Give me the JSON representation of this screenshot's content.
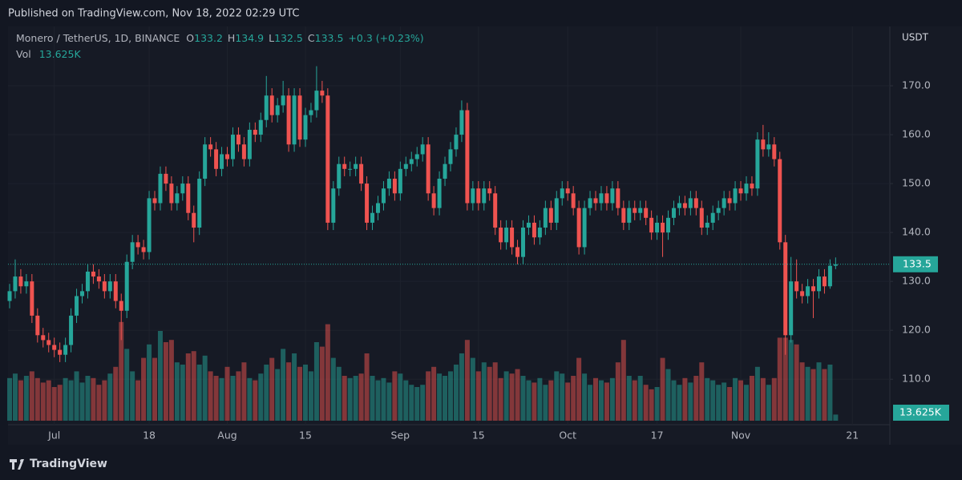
{
  "chart_data": {
    "type": "candlestick",
    "published": "Published on TradingView.com, Nov 18, 2022 02:29 UTC",
    "symbol": "Monero / TetherUS, 1D, BINANCE",
    "legend_keys": [
      "O",
      "H",
      "L",
      "C"
    ],
    "change_label": "+0.3 (+0.23%)",
    "y_axis_label": "USDT",
    "footer": "TradingView",
    "up_color": "#26a69a",
    "down_color": "#ef5350",
    "grid": true,
    "last_price_line": true,
    "x": [
      "2022-06-23",
      "2022-06-24",
      "2022-06-25",
      "2022-06-26",
      "2022-06-27",
      "2022-06-28",
      "2022-06-29",
      "2022-06-30",
      "2022-07-01",
      "2022-07-02",
      "2022-07-03",
      "2022-07-04",
      "2022-07-05",
      "2022-07-06",
      "2022-07-07",
      "2022-07-08",
      "2022-07-09",
      "2022-07-10",
      "2022-07-11",
      "2022-07-12",
      "2022-07-13",
      "2022-07-14",
      "2022-07-15",
      "2022-07-16",
      "2022-07-17",
      "2022-07-18",
      "2022-07-19",
      "2022-07-20",
      "2022-07-21",
      "2022-07-22",
      "2022-07-23",
      "2022-07-24",
      "2022-07-25",
      "2022-07-26",
      "2022-07-27",
      "2022-07-28",
      "2022-07-29",
      "2022-07-30",
      "2022-07-31",
      "2022-08-01",
      "2022-08-02",
      "2022-08-03",
      "2022-08-04",
      "2022-08-05",
      "2022-08-06",
      "2022-08-07",
      "2022-08-08",
      "2022-08-09",
      "2022-08-10",
      "2022-08-11",
      "2022-08-12",
      "2022-08-13",
      "2022-08-14",
      "2022-08-15",
      "2022-08-16",
      "2022-08-17",
      "2022-08-18",
      "2022-08-19",
      "2022-08-20",
      "2022-08-21",
      "2022-08-22",
      "2022-08-23",
      "2022-08-24",
      "2022-08-25",
      "2022-08-26",
      "2022-08-27",
      "2022-08-28",
      "2022-08-29",
      "2022-08-30",
      "2022-08-31",
      "2022-09-01",
      "2022-09-02",
      "2022-09-03",
      "2022-09-04",
      "2022-09-05",
      "2022-09-06",
      "2022-09-07",
      "2022-09-08",
      "2022-09-09",
      "2022-09-10",
      "2022-09-11",
      "2022-09-12",
      "2022-09-13",
      "2022-09-14",
      "2022-09-15",
      "2022-09-16",
      "2022-09-17",
      "2022-09-18",
      "2022-09-19",
      "2022-09-20",
      "2022-09-21",
      "2022-09-22",
      "2022-09-23",
      "2022-09-24",
      "2022-09-25",
      "2022-09-26",
      "2022-09-27",
      "2022-09-28",
      "2022-09-29",
      "2022-09-30",
      "2022-10-01",
      "2022-10-02",
      "2022-10-03",
      "2022-10-04",
      "2022-10-05",
      "2022-10-06",
      "2022-10-07",
      "2022-10-08",
      "2022-10-09",
      "2022-10-10",
      "2022-10-11",
      "2022-10-12",
      "2022-10-13",
      "2022-10-14",
      "2022-10-15",
      "2022-10-16",
      "2022-10-17",
      "2022-10-18",
      "2022-10-19",
      "2022-10-20",
      "2022-10-21",
      "2022-10-22",
      "2022-10-23",
      "2022-10-24",
      "2022-10-25",
      "2022-10-26",
      "2022-10-27",
      "2022-10-28",
      "2022-10-29",
      "2022-10-30",
      "2022-10-31",
      "2022-11-01",
      "2022-11-02",
      "2022-11-03",
      "2022-11-04",
      "2022-11-05",
      "2022-11-06",
      "2022-11-07",
      "2022-11-08",
      "2022-11-09",
      "2022-11-10",
      "2022-11-11",
      "2022-11-12",
      "2022-11-13",
      "2022-11-14",
      "2022-11-15",
      "2022-11-16",
      "2022-11-17",
      "2022-11-18"
    ],
    "open": [
      126,
      128,
      131,
      129,
      130,
      123,
      119,
      118,
      117,
      116,
      115,
      117,
      123,
      127,
      128,
      132,
      131,
      130,
      128,
      130,
      126,
      124,
      134,
      138,
      137,
      136,
      147,
      146,
      152,
      150,
      146,
      148,
      150,
      144,
      141,
      151,
      158,
      157,
      153,
      156,
      155,
      160,
      158,
      155,
      161,
      160,
      163,
      168,
      164,
      166,
      168,
      158,
      168,
      159,
      164,
      165,
      169,
      168,
      142,
      149,
      154,
      153,
      153,
      154,
      150,
      142,
      144,
      146,
      149,
      151,
      148,
      153,
      154,
      155,
      156,
      158,
      148,
      145,
      151,
      154,
      157,
      160,
      165,
      146,
      149,
      146,
      149,
      148,
      141,
      138,
      141,
      137,
      135,
      141,
      142,
      139,
      141,
      145,
      142,
      147,
      149,
      148,
      145,
      137,
      145,
      147,
      146,
      148,
      146,
      149,
      145,
      142,
      145,
      144,
      145,
      143,
      140,
      142,
      140,
      143,
      145,
      146,
      145,
      147,
      145,
      141,
      142,
      144,
      145,
      147,
      146,
      149,
      148,
      150,
      149,
      159,
      157,
      158,
      155,
      138,
      119,
      130,
      128,
      127,
      129,
      128,
      131,
      129,
      133.2
    ],
    "high": [
      129.5,
      134.5,
      132.5,
      131.5,
      131.5,
      124.5,
      120.5,
      119.5,
      118.5,
      117.5,
      118.5,
      124.5,
      128.5,
      129.5,
      133.5,
      133.5,
      132.5,
      131.5,
      131.5,
      131.5,
      127.5,
      135.5,
      139.5,
      139.5,
      138.5,
      148.5,
      148.5,
      153.5,
      153.5,
      151.5,
      149.5,
      151.5,
      151.5,
      145.5,
      152.5,
      159.5,
      159.5,
      158.5,
      157.5,
      157.5,
      161.5,
      161.5,
      159.5,
      162.5,
      162.5,
      164.5,
      172,
      169.5,
      167.5,
      171,
      169.5,
      169.5,
      169.5,
      165.5,
      166.5,
      174,
      171,
      169.5,
      150.5,
      155.5,
      155.5,
      154.5,
      155.5,
      155.5,
      151.5,
      145.5,
      147.5,
      150.5,
      152.5,
      152.5,
      154.5,
      155.5,
      156.5,
      157.5,
      159.5,
      159.5,
      149.5,
      152.5,
      155.5,
      158.5,
      161.5,
      167,
      166.5,
      150.5,
      150.5,
      150.5,
      150.5,
      149.5,
      142.5,
      142.5,
      142.5,
      138.5,
      142.5,
      143.5,
      143.5,
      142.5,
      146.5,
      146.5,
      148.5,
      150.5,
      150.5,
      149.5,
      146.5,
      146.5,
      148.5,
      148.5,
      149.5,
      149.5,
      150.5,
      150.5,
      146.5,
      146.5,
      146.5,
      146.5,
      146.5,
      144.5,
      143.5,
      143.5,
      144.5,
      146.5,
      147.5,
      147.5,
      148.5,
      148.5,
      146.5,
      143.5,
      145.5,
      146.5,
      148.5,
      148.5,
      150.5,
      150.5,
      151.5,
      151.5,
      160.5,
      162,
      160.5,
      159.5,
      156.5,
      139.5,
      135,
      134.5,
      129.5,
      130.5,
      130.5,
      132.5,
      132.5,
      134.5,
      134.9
    ],
    "low": [
      124.5,
      126.5,
      127.5,
      127.5,
      121.5,
      117.5,
      116.5,
      115.5,
      114.5,
      113.5,
      113.5,
      115.5,
      121.5,
      125.5,
      126.5,
      129.5,
      128.5,
      126.5,
      126.5,
      124.5,
      118,
      122.5,
      132.5,
      135.5,
      134.5,
      134.5,
      144.5,
      144.5,
      148.5,
      144.5,
      144.5,
      146.5,
      142.5,
      138,
      139.5,
      149.5,
      155.5,
      151.5,
      151.5,
      153.5,
      153.5,
      156.5,
      153.5,
      153.5,
      158.5,
      158.5,
      161.5,
      162.5,
      162.5,
      164.5,
      156.5,
      156.5,
      157.5,
      157.5,
      162.5,
      163.5,
      166.5,
      140.5,
      140.5,
      147.5,
      151.5,
      151.5,
      151.5,
      148.5,
      140.5,
      140.5,
      142.5,
      144.5,
      147.5,
      146.5,
      146.5,
      151.5,
      152.5,
      153.5,
      154.5,
      146.5,
      143.5,
      143.5,
      149.5,
      152.5,
      155.5,
      158.5,
      144.5,
      144.5,
      144.5,
      144.5,
      146.5,
      139.5,
      136.5,
      136.5,
      135.5,
      133.5,
      133.5,
      139.5,
      137.5,
      137.5,
      139.5,
      140.5,
      140.5,
      145.5,
      146.5,
      143.5,
      135.5,
      135.5,
      143.5,
      144.5,
      144.5,
      144.5,
      144.5,
      143.5,
      140.5,
      140.5,
      142.5,
      142.5,
      141.5,
      138.5,
      138.5,
      135,
      138.5,
      141.5,
      143.5,
      143.5,
      143.5,
      143.5,
      139.5,
      139.5,
      140.5,
      142.5,
      143.5,
      144.5,
      144.5,
      146.5,
      146.5,
      147.5,
      147.5,
      155.5,
      155.5,
      153.5,
      136.5,
      115,
      117.5,
      126.5,
      125.5,
      125.5,
      122.5,
      126.5,
      127.5,
      128.5,
      132.5
    ],
    "close": [
      128,
      131,
      129,
      130,
      123,
      119,
      118,
      117,
      116,
      115,
      117,
      123,
      127,
      128,
      132,
      131,
      130,
      128,
      130,
      126,
      124,
      134,
      138,
      137,
      136,
      147,
      146,
      152,
      150,
      146,
      148,
      150,
      144,
      141,
      151,
      158,
      157,
      153,
      156,
      155,
      160,
      158,
      155,
      161,
      160,
      163,
      168,
      164,
      166,
      168,
      158,
      168,
      159,
      164,
      165,
      169,
      168,
      142,
      149,
      154,
      153,
      153,
      154,
      150,
      142,
      144,
      146,
      149,
      151,
      148,
      153,
      154,
      155,
      156,
      158,
      148,
      145,
      151,
      154,
      157,
      160,
      165,
      146,
      149,
      146,
      149,
      148,
      141,
      138,
      141,
      137,
      135,
      141,
      142,
      139,
      141,
      145,
      142,
      147,
      149,
      148,
      145,
      137,
      145,
      147,
      146,
      148,
      146,
      149,
      145,
      142,
      145,
      144,
      145,
      143,
      140,
      142,
      140,
      143,
      145,
      146,
      145,
      147,
      145,
      141,
      142,
      144,
      145,
      147,
      146,
      149,
      148,
      150,
      149,
      159,
      157,
      158,
      155,
      138,
      119,
      130,
      128,
      127,
      129,
      128,
      131,
      129,
      133.2,
      133.5
    ],
    "volume": {
      "name": "Vol",
      "last_label": "13.625K",
      "lim": [
        0,
        250000
      ],
      "values": [
        95000,
        105000,
        90000,
        100000,
        110000,
        95000,
        85000,
        90000,
        75000,
        80000,
        95000,
        90000,
        110000,
        85000,
        100000,
        95000,
        80000,
        90000,
        105000,
        120000,
        220000,
        160000,
        110000,
        90000,
        140000,
        170000,
        140000,
        200000,
        175000,
        180000,
        130000,
        125000,
        150000,
        155000,
        125000,
        145000,
        110000,
        100000,
        95000,
        120000,
        100000,
        110000,
        130000,
        95000,
        90000,
        105000,
        125000,
        140000,
        115000,
        160000,
        130000,
        150000,
        120000,
        125000,
        110000,
        175000,
        165000,
        215000,
        140000,
        120000,
        100000,
        95000,
        100000,
        105000,
        150000,
        100000,
        90000,
        95000,
        85000,
        110000,
        105000,
        90000,
        80000,
        75000,
        80000,
        110000,
        120000,
        105000,
        100000,
        110000,
        125000,
        150000,
        180000,
        140000,
        110000,
        130000,
        120000,
        130000,
        95000,
        110000,
        105000,
        115000,
        100000,
        90000,
        85000,
        95000,
        80000,
        90000,
        110000,
        105000,
        85000,
        100000,
        140000,
        105000,
        80000,
        95000,
        90000,
        85000,
        95000,
        130000,
        180000,
        100000,
        90000,
        100000,
        80000,
        70000,
        75000,
        140000,
        115000,
        90000,
        80000,
        95000,
        85000,
        100000,
        130000,
        95000,
        90000,
        80000,
        85000,
        75000,
        95000,
        90000,
        80000,
        100000,
        120000,
        95000,
        80000,
        95000,
        185000,
        185000,
        180000,
        170000,
        130000,
        120000,
        115000,
        130000,
        115000,
        125000,
        13625
      ]
    },
    "xlim": [
      "2022-06-23",
      "2022-11-28"
    ],
    "xticks": [
      {
        "value": "2022-07-01",
        "label": "Jul"
      },
      {
        "value": "2022-07-18",
        "label": "18"
      },
      {
        "value": "2022-08-01",
        "label": "Aug"
      },
      {
        "value": "2022-08-15",
        "label": "15"
      },
      {
        "value": "2022-09-01",
        "label": "Sep"
      },
      {
        "value": "2022-09-15",
        "label": "15"
      },
      {
        "value": "2022-10-01",
        "label": "Oct"
      },
      {
        "value": "2022-10-17",
        "label": "17"
      },
      {
        "value": "2022-11-01",
        "label": "Nov"
      },
      {
        "value": "2022-11-21",
        "label": "21"
      }
    ],
    "ylim": [
      100.7,
      181.8
    ],
    "yticks": [
      {
        "value": 110,
        "label": "110.0"
      },
      {
        "value": 120,
        "label": "120.0"
      },
      {
        "value": 130,
        "label": "130.0"
      },
      {
        "value": 140,
        "label": "140.0"
      },
      {
        "value": 150,
        "label": "150.0"
      },
      {
        "value": 160,
        "label": "160.0"
      },
      {
        "value": 170,
        "label": "170.0"
      }
    ]
  }
}
